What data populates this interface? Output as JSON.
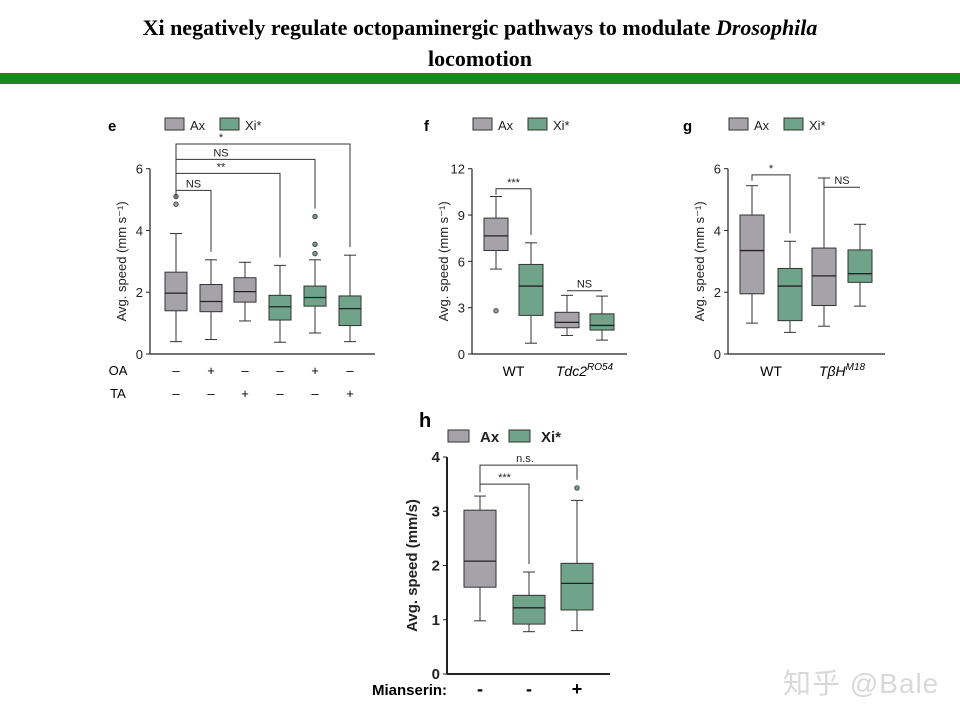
{
  "slide": {
    "title_part1": "Xi negatively regulate octopaminergic pathways to modulate ",
    "title_italic": "Drosophila",
    "title_part2": "locomotion",
    "watermark": "知乎 @Bale",
    "accent_color": "#1a8a1e"
  },
  "colors": {
    "Ax": "#a5a3a9",
    "Xi*": "#6fa48b"
  },
  "chart_data": [
    {
      "panel": "e",
      "type": "box",
      "legend": [
        "Ax",
        "Xi*"
      ],
      "ylabel": "Avg. speed (mm s⁻¹)",
      "ylim": [
        0,
        6
      ],
      "yticks": [
        0,
        2,
        4,
        6
      ],
      "row_labels": [
        "OA",
        "TA"
      ],
      "boxes": [
        {
          "group": "Ax",
          "min": 0.4,
          "q1": 1.4,
          "median": 1.97,
          "q3": 2.65,
          "max": 3.9,
          "outliers": [
            4.85,
            5.1
          ],
          "conditions": [
            "–",
            "–"
          ]
        },
        {
          "group": "Ax",
          "min": 0.47,
          "q1": 1.37,
          "median": 1.7,
          "q3": 2.25,
          "max": 3.05,
          "outliers": [],
          "conditions": [
            "+",
            "–"
          ]
        },
        {
          "group": "Ax",
          "min": 1.07,
          "q1": 1.68,
          "median": 2.02,
          "q3": 2.47,
          "max": 2.97,
          "outliers": [],
          "conditions": [
            "–",
            "+"
          ]
        },
        {
          "group": "Xi*",
          "min": 0.38,
          "q1": 1.1,
          "median": 1.53,
          "q3": 1.9,
          "max": 2.87,
          "outliers": [],
          "conditions": [
            "–",
            "–"
          ]
        },
        {
          "group": "Xi*",
          "min": 0.68,
          "q1": 1.55,
          "median": 1.83,
          "q3": 2.2,
          "max": 3.05,
          "outliers": [
            3.25,
            3.55,
            4.45
          ],
          "conditions": [
            "+",
            "–"
          ]
        },
        {
          "group": "Xi*",
          "min": 0.4,
          "q1": 0.92,
          "median": 1.47,
          "q3": 1.88,
          "max": 3.2,
          "outliers": [],
          "conditions": [
            "–",
            "+"
          ]
        }
      ],
      "significance": [
        {
          "from": 0,
          "to": 1,
          "label": "NS",
          "y": 5.3
        },
        {
          "from": 0,
          "to": 3,
          "label": "**",
          "y": 5.85
        },
        {
          "from": 0,
          "to": 4,
          "label": "NS",
          "y": 6.3
        },
        {
          "from": 0,
          "to": 5,
          "label": "*",
          "y": 6.8
        }
      ]
    },
    {
      "panel": "f",
      "type": "box",
      "legend": [
        "Ax",
        "Xi*"
      ],
      "ylabel": "Avg. speed (mm s⁻¹)",
      "ylim": [
        0,
        12
      ],
      "yticks": [
        0,
        3,
        6,
        9,
        12
      ],
      "categories": [
        {
          "label": "WT",
          "sup": ""
        },
        {
          "label": "Tdc2",
          "sup": "RO54"
        }
      ],
      "boxes": [
        {
          "group": "Ax",
          "min": 5.5,
          "q1": 6.7,
          "median": 7.65,
          "q3": 8.8,
          "max": 10.2,
          "outliers": [
            2.8
          ]
        },
        {
          "group": "Xi*",
          "min": 0.7,
          "q1": 2.5,
          "median": 4.4,
          "q3": 5.8,
          "max": 7.2,
          "outliers": []
        },
        {
          "group": "Ax",
          "min": 1.2,
          "q1": 1.7,
          "median": 2.05,
          "q3": 2.7,
          "max": 3.8,
          "outliers": []
        },
        {
          "group": "Xi*",
          "min": 0.9,
          "q1": 1.55,
          "median": 1.85,
          "q3": 2.6,
          "max": 3.75,
          "outliers": []
        }
      ],
      "significance": [
        {
          "from": 0,
          "to": 1,
          "label": "***",
          "y": 10.7,
          "drop": true
        },
        {
          "from": 2,
          "to": 3,
          "label": "NS",
          "y": 4.1,
          "drop": false
        }
      ]
    },
    {
      "panel": "g",
      "type": "box",
      "legend": [
        "Ax",
        "Xi*"
      ],
      "ylabel": "Avg. speed (mm s⁻¹)",
      "ylim": [
        0,
        6
      ],
      "yticks": [
        0,
        2,
        4,
        6
      ],
      "categories": [
        {
          "label": "WT",
          "sup": ""
        },
        {
          "label": "TβH",
          "sup": "M18"
        }
      ],
      "boxes": [
        {
          "group": "Ax",
          "min": 1.0,
          "q1": 1.95,
          "median": 3.35,
          "q3": 4.5,
          "max": 5.45,
          "outliers": []
        },
        {
          "group": "Xi*",
          "min": 0.7,
          "q1": 1.08,
          "median": 2.2,
          "q3": 2.77,
          "max": 3.65,
          "outliers": []
        },
        {
          "group": "Ax",
          "min": 0.9,
          "q1": 1.57,
          "median": 2.53,
          "q3": 3.43,
          "max": 5.7,
          "outliers": []
        },
        {
          "group": "Xi*",
          "min": 1.55,
          "q1": 2.32,
          "median": 2.6,
          "q3": 3.37,
          "max": 4.2,
          "outliers": []
        }
      ],
      "significance": [
        {
          "from": 0,
          "to": 1,
          "label": "*",
          "y": 5.8,
          "drop": true
        },
        {
          "from": 2,
          "to": 3,
          "label": "NS",
          "y": 5.4,
          "drop": false
        }
      ]
    },
    {
      "panel": "h",
      "type": "box",
      "legend": [
        "Ax",
        "Xi*"
      ],
      "ylabel": "Avg. speed (mm/s)",
      "ylim": [
        0,
        4
      ],
      "yticks": [
        0,
        1,
        2,
        3,
        4
      ],
      "row_labels": [
        "Mianserin:"
      ],
      "boxes": [
        {
          "group": "Ax",
          "min": 0.98,
          "q1": 1.6,
          "median": 2.08,
          "q3": 3.02,
          "max": 3.28,
          "outliers": [],
          "conditions": [
            "-"
          ]
        },
        {
          "group": "Xi*",
          "min": 0.78,
          "q1": 0.92,
          "median": 1.22,
          "q3": 1.45,
          "max": 1.88,
          "outliers": [],
          "conditions": [
            "-"
          ]
        },
        {
          "group": "Xi*",
          "min": 0.8,
          "q1": 1.18,
          "median": 1.67,
          "q3": 2.04,
          "max": 3.2,
          "outliers": [
            3.43
          ],
          "conditions": [
            "+"
          ]
        }
      ],
      "significance": [
        {
          "from": 0,
          "to": 1,
          "label": "***",
          "y": 3.5
        },
        {
          "from": 0,
          "to": 2,
          "label": "n.s.",
          "y": 3.85
        }
      ]
    }
  ]
}
